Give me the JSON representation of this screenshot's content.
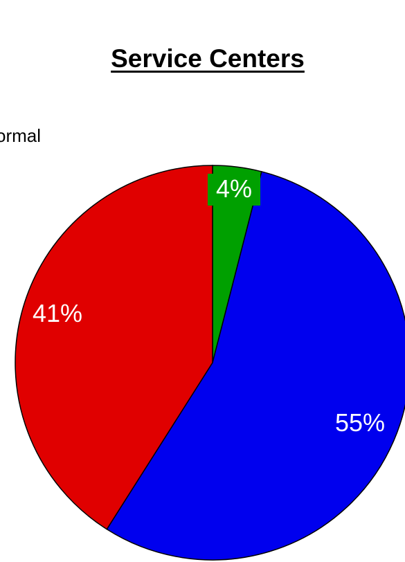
{
  "chart_data": {
    "type": "pie",
    "title": "Service Centers",
    "visible_partial_text": "ormal",
    "slices": [
      {
        "label": "4%",
        "value": 4,
        "color": "#00a000"
      },
      {
        "label": "55%",
        "value": 55,
        "color": "#0000ee"
      },
      {
        "label": "41%",
        "value": 41,
        "color": "#e00000"
      }
    ],
    "label_color": "#ffffff",
    "outline_color": "#000000"
  }
}
